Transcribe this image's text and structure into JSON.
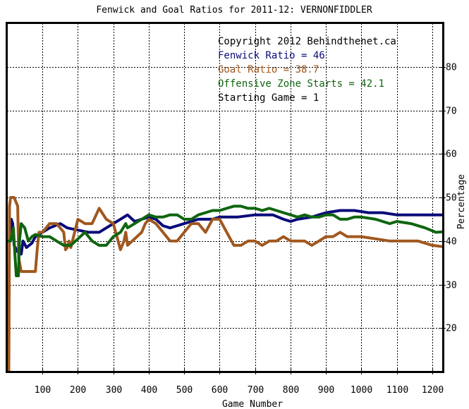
{
  "chart_data": {
    "type": "line",
    "title": "Fenwick and Goal Ratios for 2011-12: VERNONFIDDLER",
    "xlabel": "Game Number",
    "ylabel": "Percentage",
    "xlim": [
      0,
      1230
    ],
    "ylim": [
      10,
      90
    ],
    "x_ticks": [
      100,
      200,
      300,
      400,
      500,
      600,
      700,
      800,
      900,
      1000,
      1100,
      1200
    ],
    "y_ticks": [
      20,
      30,
      40,
      50,
      60,
      70,
      80
    ],
    "grid": true,
    "colors": {
      "fenwick": "#0b0b7a",
      "goal": "#a0581f",
      "ozs": "#0f650f",
      "frame": "#000000"
    },
    "annotations": [
      {
        "text": "Copyright 2012 Behindthenet.ca",
        "color": "#000000"
      },
      {
        "text": "Fenwick Ratio = 46",
        "color": "#0b0b7a"
      },
      {
        "text": "Goal Ratio = 38.7",
        "color": "#a0581f"
      },
      {
        "text": "Offensive Zone Starts = 42.1",
        "color": "#0f650f"
      },
      {
        "text": "Starting Game = 1",
        "color": "#000000"
      }
    ],
    "series": [
      {
        "key": "fenwick",
        "points": [
          [
            1,
            40
          ],
          [
            8,
            40
          ],
          [
            12,
            45
          ],
          [
            16,
            44
          ],
          [
            20,
            39
          ],
          [
            30,
            37.5
          ],
          [
            40,
            37
          ],
          [
            45,
            40
          ],
          [
            55,
            38.5
          ],
          [
            70,
            39.5
          ],
          [
            80,
            41
          ],
          [
            100,
            42
          ],
          [
            120,
            43
          ],
          [
            150,
            44
          ],
          [
            170,
            43
          ],
          [
            200,
            42.5
          ],
          [
            230,
            42
          ],
          [
            260,
            42
          ],
          [
            280,
            43
          ],
          [
            300,
            44
          ],
          [
            320,
            45
          ],
          [
            340,
            46
          ],
          [
            360,
            44.5
          ],
          [
            380,
            45
          ],
          [
            400,
            45.5
          ],
          [
            420,
            45
          ],
          [
            440,
            43.5
          ],
          [
            460,
            43
          ],
          [
            480,
            43.5
          ],
          [
            500,
            44
          ],
          [
            520,
            44.5
          ],
          [
            540,
            45
          ],
          [
            580,
            45
          ],
          [
            600,
            45.5
          ],
          [
            650,
            45.5
          ],
          [
            700,
            46
          ],
          [
            750,
            46
          ],
          [
            780,
            45
          ],
          [
            800,
            44.5
          ],
          [
            820,
            45
          ],
          [
            860,
            45.5
          ],
          [
            900,
            46.5
          ],
          [
            940,
            47
          ],
          [
            980,
            47
          ],
          [
            1020,
            46.5
          ],
          [
            1060,
            46.5
          ],
          [
            1100,
            46
          ],
          [
            1150,
            46
          ],
          [
            1200,
            46
          ],
          [
            1230,
            46
          ]
        ]
      },
      {
        "key": "goal",
        "points": [
          [
            1,
            10
          ],
          [
            5,
            10
          ],
          [
            7,
            48
          ],
          [
            10,
            50
          ],
          [
            20,
            50
          ],
          [
            30,
            48
          ],
          [
            33,
            36
          ],
          [
            40,
            33
          ],
          [
            60,
            33
          ],
          [
            80,
            33
          ],
          [
            85,
            38
          ],
          [
            90,
            42
          ],
          [
            100,
            42
          ],
          [
            120,
            44
          ],
          [
            140,
            44
          ],
          [
            160,
            42
          ],
          [
            165,
            38
          ],
          [
            170,
            38.5
          ],
          [
            175,
            40
          ],
          [
            180,
            38.5
          ],
          [
            200,
            45
          ],
          [
            220,
            44
          ],
          [
            240,
            44
          ],
          [
            260,
            47.5
          ],
          [
            280,
            45
          ],
          [
            300,
            44
          ],
          [
            310,
            41
          ],
          [
            320,
            38
          ],
          [
            330,
            40
          ],
          [
            335,
            42
          ],
          [
            340,
            39
          ],
          [
            360,
            40.5
          ],
          [
            380,
            42
          ],
          [
            390,
            44
          ],
          [
            400,
            45
          ],
          [
            420,
            44
          ],
          [
            440,
            42
          ],
          [
            460,
            40
          ],
          [
            480,
            40
          ],
          [
            500,
            42
          ],
          [
            520,
            44
          ],
          [
            540,
            44
          ],
          [
            560,
            42
          ],
          [
            580,
            45
          ],
          [
            600,
            45
          ],
          [
            620,
            42
          ],
          [
            640,
            39
          ],
          [
            660,
            39
          ],
          [
            680,
            40
          ],
          [
            700,
            40
          ],
          [
            720,
            39
          ],
          [
            740,
            40
          ],
          [
            760,
            40
          ],
          [
            780,
            41
          ],
          [
            800,
            40
          ],
          [
            820,
            40
          ],
          [
            840,
            40
          ],
          [
            860,
            39
          ],
          [
            880,
            40
          ],
          [
            900,
            41
          ],
          [
            920,
            41
          ],
          [
            940,
            42
          ],
          [
            960,
            41
          ],
          [
            1000,
            41
          ],
          [
            1040,
            40.5
          ],
          [
            1080,
            40
          ],
          [
            1120,
            40
          ],
          [
            1160,
            40
          ],
          [
            1200,
            39
          ],
          [
            1230,
            38.7
          ]
        ]
      },
      {
        "key": "ozs",
        "points": [
          [
            1,
            40
          ],
          [
            10,
            40
          ],
          [
            18,
            43
          ],
          [
            22,
            37
          ],
          [
            26,
            32
          ],
          [
            32,
            32
          ],
          [
            35,
            40
          ],
          [
            40,
            44
          ],
          [
            50,
            43
          ],
          [
            60,
            40
          ],
          [
            70,
            41
          ],
          [
            80,
            41.5
          ],
          [
            100,
            41
          ],
          [
            120,
            41
          ],
          [
            140,
            40
          ],
          [
            160,
            39
          ],
          [
            180,
            39
          ],
          [
            200,
            40.5
          ],
          [
            220,
            42
          ],
          [
            240,
            40
          ],
          [
            260,
            39
          ],
          [
            280,
            39
          ],
          [
            300,
            41
          ],
          [
            320,
            42
          ],
          [
            335,
            44
          ],
          [
            340,
            43
          ],
          [
            360,
            44
          ],
          [
            380,
            45
          ],
          [
            400,
            46
          ],
          [
            420,
            45.5
          ],
          [
            440,
            45.5
          ],
          [
            460,
            46
          ],
          [
            480,
            46
          ],
          [
            500,
            45
          ],
          [
            520,
            45
          ],
          [
            540,
            46
          ],
          [
            560,
            46.5
          ],
          [
            580,
            47
          ],
          [
            600,
            47
          ],
          [
            620,
            47.5
          ],
          [
            640,
            48
          ],
          [
            660,
            48
          ],
          [
            680,
            47.5
          ],
          [
            700,
            47.5
          ],
          [
            720,
            47
          ],
          [
            740,
            47.5
          ],
          [
            760,
            47
          ],
          [
            780,
            46.5
          ],
          [
            800,
            46
          ],
          [
            820,
            45.5
          ],
          [
            840,
            46
          ],
          [
            860,
            45.5
          ],
          [
            880,
            45.5
          ],
          [
            900,
            46
          ],
          [
            920,
            46
          ],
          [
            940,
            45
          ],
          [
            960,
            45
          ],
          [
            980,
            45.5
          ],
          [
            1000,
            45.5
          ],
          [
            1040,
            45
          ],
          [
            1080,
            44
          ],
          [
            1100,
            44.5
          ],
          [
            1140,
            44
          ],
          [
            1180,
            43
          ],
          [
            1210,
            42
          ],
          [
            1230,
            42.1
          ]
        ]
      }
    ]
  }
}
